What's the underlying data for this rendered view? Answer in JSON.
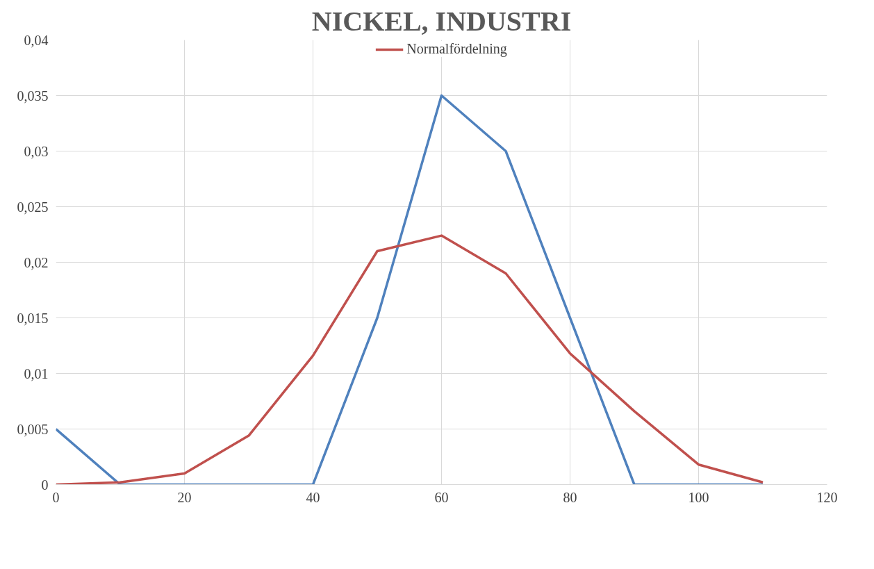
{
  "chart_data": {
    "type": "line",
    "title": "NICKEL, INDUSTRI",
    "x": [
      0,
      10,
      20,
      30,
      40,
      50,
      60,
      70,
      80,
      90,
      100,
      110
    ],
    "series": [
      {
        "color": "#4f81bd",
        "values": [
          0.005,
          0,
          0,
          0,
          0,
          0.015,
          0.035,
          0.03,
          0.015,
          0,
          0,
          0
        ]
      },
      {
        "name": "Normalfördelning",
        "color": "#c0504d",
        "values": [
          0,
          0.0002,
          0.001,
          0.0044,
          0.0116,
          0.021,
          0.0224,
          0.019,
          0.0118,
          0.0066,
          0.0018,
          0.0002
        ]
      }
    ],
    "xlim": [
      0,
      120
    ],
    "xticks": [
      0,
      20,
      40,
      60,
      80,
      100,
      120
    ],
    "ylim": [
      0,
      0.04
    ],
    "yticks": [
      {
        "value": 0,
        "label": "0"
      },
      {
        "value": 0.005,
        "label": "0,005"
      },
      {
        "value": 0.01,
        "label": "0,01"
      },
      {
        "value": 0.015,
        "label": "0,015"
      },
      {
        "value": 0.02,
        "label": "0,02"
      },
      {
        "value": 0.025,
        "label": "0,025"
      },
      {
        "value": 0.03,
        "label": "0,03"
      },
      {
        "value": 0.035,
        "label": "0,035"
      },
      {
        "value": 0.04,
        "label": "0,04"
      }
    ],
    "grid": true,
    "legend": "top",
    "marker": "none",
    "line_style": "solid"
  }
}
